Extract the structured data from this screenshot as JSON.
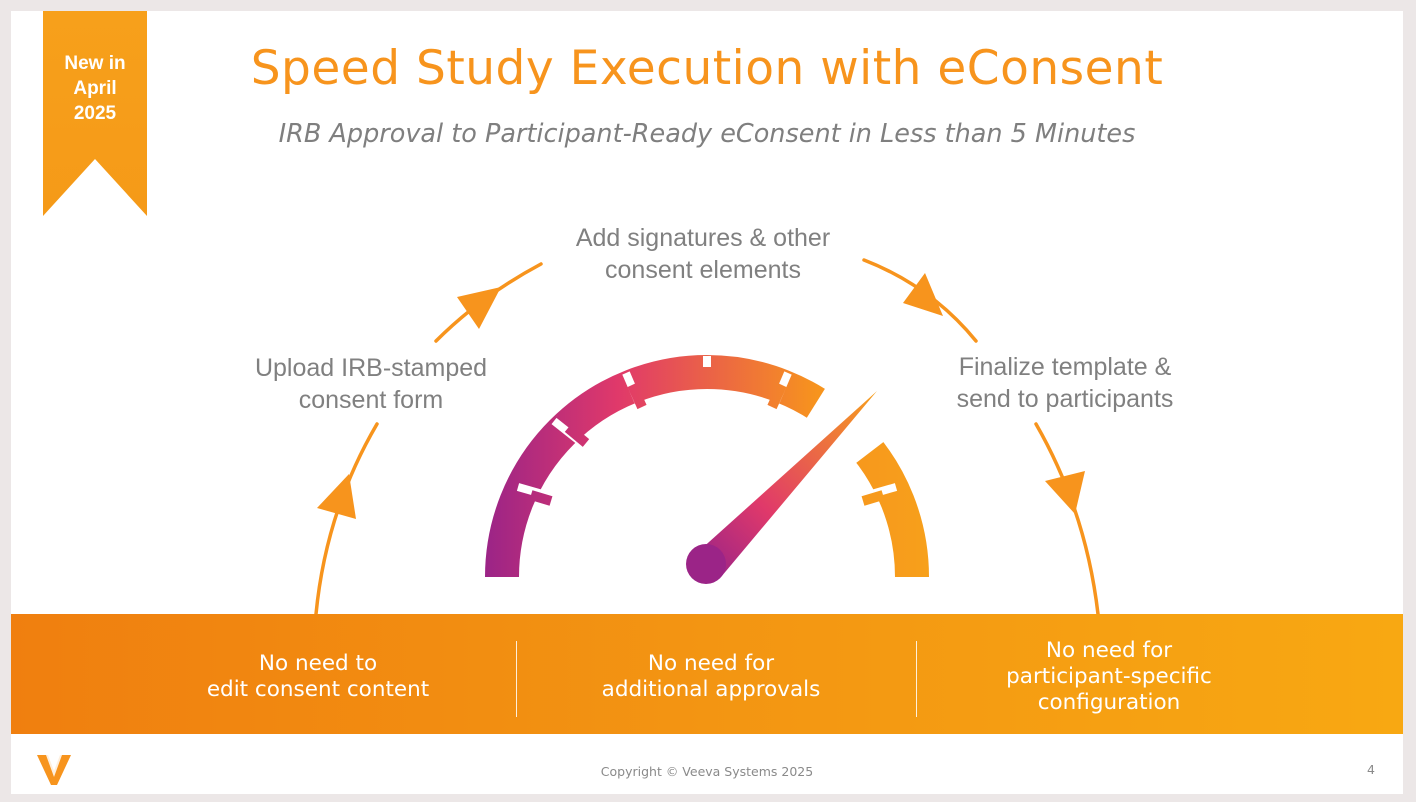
{
  "badge": {
    "line1": "New in",
    "line2": "April",
    "line3": "2025"
  },
  "title": "Speed Study Execution with eConsent",
  "subtitle": "IRB Approval to Participant-Ready eConsent in Less than 5 Minutes",
  "steps": [
    {
      "line1": "Upload IRB-stamped",
      "line2": "consent form"
    },
    {
      "line1": "Add signatures & other",
      "line2": "consent elements"
    },
    {
      "line1": "Finalize template &",
      "line2": "send to participants"
    }
  ],
  "benefits": [
    {
      "line1": "No need to",
      "line2": "edit consent content"
    },
    {
      "line1": "No need for",
      "line2": "additional approvals"
    },
    {
      "line1": "No need for",
      "line2": "participant-specific",
      "line3": "configuration"
    }
  ],
  "footer": {
    "copyright": "Copyright © Veeva Systems 2025",
    "page_number": "4"
  },
  "colors": {
    "accent_orange": "#f7941d",
    "gauge_start": "#9b2487",
    "gauge_mid": "#e0396a",
    "gauge_end": "#f7a01b",
    "step_text": "#808080"
  },
  "icons": {
    "logo": "veeva-v-logo",
    "gauge": "speedometer-gauge"
  }
}
